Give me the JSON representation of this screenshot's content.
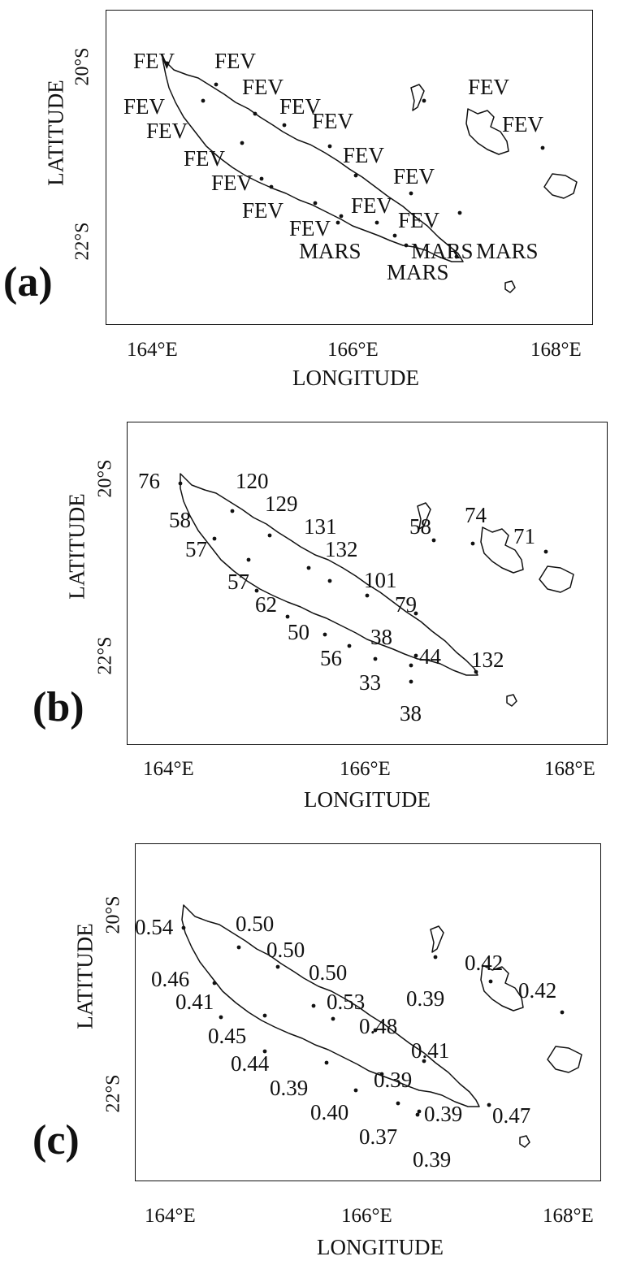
{
  "axes": {
    "xlabel": "LONGITUDE",
    "ylabel": "LATITUDE",
    "x_ticks": [
      "164°E",
      "166°E",
      "168°E"
    ],
    "y_ticks": [
      "20°S",
      "22°S"
    ]
  },
  "panels": [
    {
      "label": "(a)",
      "stations": [
        {
          "text": "FEV"
        },
        {
          "text": "FEV"
        },
        {
          "text": "FEV"
        },
        {
          "text": "FEV"
        },
        {
          "text": "FEV"
        },
        {
          "text": "FEV"
        },
        {
          "text": "FEV"
        },
        {
          "text": "FEV"
        },
        {
          "text": "FEV"
        },
        {
          "text": "FEV"
        },
        {
          "text": "FEV"
        },
        {
          "text": "FEV"
        },
        {
          "text": "FEV"
        },
        {
          "text": "FEV"
        },
        {
          "text": "FEV"
        },
        {
          "text": "FEV"
        },
        {
          "text": "FEV"
        },
        {
          "text": "MARS"
        },
        {
          "text": "MARS"
        },
        {
          "text": "MARS"
        },
        {
          "text": "MARS"
        }
      ]
    },
    {
      "label": "(b)",
      "stations": [
        {
          "text": "76"
        },
        {
          "text": "120"
        },
        {
          "text": "58"
        },
        {
          "text": "129"
        },
        {
          "text": "131"
        },
        {
          "text": "58"
        },
        {
          "text": "74"
        },
        {
          "text": "71"
        },
        {
          "text": "57"
        },
        {
          "text": "132"
        },
        {
          "text": "101"
        },
        {
          "text": "57"
        },
        {
          "text": "79"
        },
        {
          "text": "62"
        },
        {
          "text": "38"
        },
        {
          "text": "50"
        },
        {
          "text": "56"
        },
        {
          "text": "44"
        },
        {
          "text": "132"
        },
        {
          "text": "33"
        },
        {
          "text": "38"
        }
      ]
    },
    {
      "label": "(c)",
      "stations": [
        {
          "text": "0.54"
        },
        {
          "text": "0.50"
        },
        {
          "text": "0.50"
        },
        {
          "text": "0.46"
        },
        {
          "text": "0.50"
        },
        {
          "text": "0.42"
        },
        {
          "text": "0.39"
        },
        {
          "text": "0.42"
        },
        {
          "text": "0.41"
        },
        {
          "text": "0.53"
        },
        {
          "text": "0.48"
        },
        {
          "text": "0.45"
        },
        {
          "text": "0.41"
        },
        {
          "text": "0.44"
        },
        {
          "text": "0.39"
        },
        {
          "text": "0.39"
        },
        {
          "text": "0.40"
        },
        {
          "text": "0.39"
        },
        {
          "text": "0.47"
        },
        {
          "text": "0.37"
        },
        {
          "text": "0.39"
        }
      ]
    }
  ]
}
